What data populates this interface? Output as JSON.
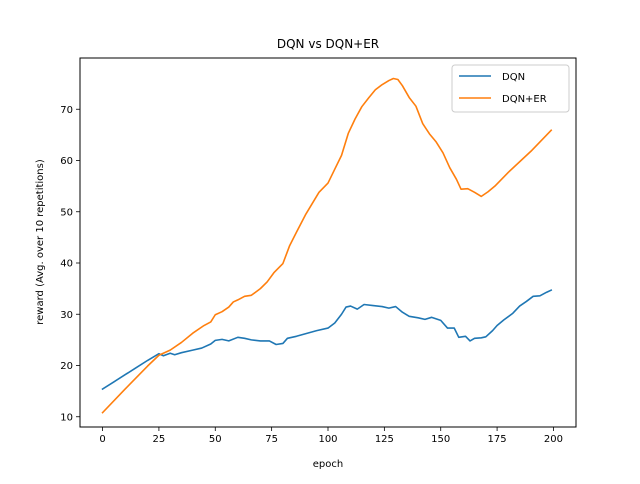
{
  "chart_data": {
    "type": "line",
    "title": "DQN vs DQN+ER",
    "xlabel": "epoch",
    "ylabel": "reward (Avg. over 10 repetitions)",
    "xlim": [
      -10,
      210
    ],
    "ylim": [
      8,
      80
    ],
    "xticks": [
      0,
      25,
      50,
      75,
      100,
      125,
      150,
      175,
      200
    ],
    "yticks": [
      10,
      20,
      30,
      40,
      50,
      60,
      70
    ],
    "grid": false,
    "legend": "top-right",
    "series": [
      {
        "name": "DQN",
        "color": "#1f77b4",
        "points": [
          [
            0,
            15.4
          ],
          [
            5,
            16.8
          ],
          [
            10,
            18.2
          ],
          [
            15,
            19.6
          ],
          [
            20,
            21.0
          ],
          [
            25,
            22.3
          ],
          [
            27,
            21.9
          ],
          [
            30,
            22.4
          ],
          [
            32,
            22.1
          ],
          [
            35,
            22.5
          ],
          [
            40,
            23.0
          ],
          [
            44,
            23.4
          ],
          [
            48,
            24.2
          ],
          [
            50,
            24.9
          ],
          [
            53,
            25.1
          ],
          [
            56,
            24.8
          ],
          [
            60,
            25.5
          ],
          [
            63,
            25.3
          ],
          [
            66,
            25.0
          ],
          [
            70,
            24.8
          ],
          [
            74,
            24.8
          ],
          [
            77,
            24.1
          ],
          [
            80,
            24.3
          ],
          [
            82,
            25.3
          ],
          [
            86,
            25.7
          ],
          [
            90,
            26.2
          ],
          [
            95,
            26.8
          ],
          [
            100,
            27.3
          ],
          [
            103,
            28.3
          ],
          [
            106,
            30.0
          ],
          [
            108,
            31.4
          ],
          [
            110,
            31.6
          ],
          [
            113,
            31.0
          ],
          [
            116,
            31.9
          ],
          [
            120,
            31.7
          ],
          [
            124,
            31.5
          ],
          [
            127,
            31.2
          ],
          [
            130,
            31.5
          ],
          [
            133,
            30.4
          ],
          [
            136,
            29.6
          ],
          [
            140,
            29.3
          ],
          [
            143,
            29.0
          ],
          [
            146,
            29.4
          ],
          [
            150,
            28.8
          ],
          [
            153,
            27.3
          ],
          [
            156,
            27.3
          ],
          [
            158,
            25.5
          ],
          [
            161,
            25.7
          ],
          [
            163,
            24.8
          ],
          [
            165,
            25.3
          ],
          [
            168,
            25.4
          ],
          [
            170,
            25.6
          ],
          [
            173,
            26.8
          ],
          [
            175,
            27.8
          ],
          [
            178,
            28.9
          ],
          [
            182,
            30.2
          ],
          [
            185,
            31.6
          ],
          [
            188,
            32.5
          ],
          [
            191,
            33.5
          ],
          [
            194,
            33.6
          ],
          [
            197,
            34.3
          ],
          [
            199,
            34.7
          ]
        ]
      },
      {
        "name": "DQN+ER",
        "color": "#ff7f0e",
        "points": [
          [
            0,
            10.8
          ],
          [
            10,
            15.4
          ],
          [
            20,
            19.9
          ],
          [
            25,
            22.0
          ],
          [
            30,
            23.0
          ],
          [
            35,
            24.5
          ],
          [
            40,
            26.3
          ],
          [
            45,
            27.8
          ],
          [
            48,
            28.5
          ],
          [
            50,
            29.9
          ],
          [
            53,
            30.5
          ],
          [
            56,
            31.4
          ],
          [
            58,
            32.4
          ],
          [
            60,
            32.8
          ],
          [
            63,
            33.5
          ],
          [
            66,
            33.7
          ],
          [
            70,
            35.0
          ],
          [
            73,
            36.3
          ],
          [
            76,
            38.1
          ],
          [
            80,
            39.9
          ],
          [
            83,
            43.4
          ],
          [
            86,
            46.0
          ],
          [
            90,
            49.4
          ],
          [
            93,
            51.6
          ],
          [
            96,
            53.8
          ],
          [
            100,
            55.6
          ],
          [
            103,
            58.3
          ],
          [
            106,
            61.0
          ],
          [
            109,
            65.3
          ],
          [
            112,
            68.1
          ],
          [
            115,
            70.5
          ],
          [
            118,
            72.2
          ],
          [
            121,
            73.8
          ],
          [
            124,
            74.8
          ],
          [
            127,
            75.6
          ],
          [
            129,
            76.0
          ],
          [
            131,
            75.8
          ],
          [
            133,
            74.6
          ],
          [
            136,
            72.3
          ],
          [
            139,
            70.6
          ],
          [
            142,
            67.2
          ],
          [
            145,
            65.2
          ],
          [
            148,
            63.6
          ],
          [
            151,
            61.5
          ],
          [
            154,
            58.6
          ],
          [
            157,
            56.3
          ],
          [
            159,
            54.4
          ],
          [
            162,
            54.5
          ],
          [
            165,
            53.8
          ],
          [
            168,
            53.0
          ],
          [
            171,
            53.9
          ],
          [
            174,
            55.0
          ],
          [
            180,
            57.7
          ],
          [
            190,
            61.8
          ],
          [
            199,
            65.9
          ]
        ]
      }
    ]
  }
}
